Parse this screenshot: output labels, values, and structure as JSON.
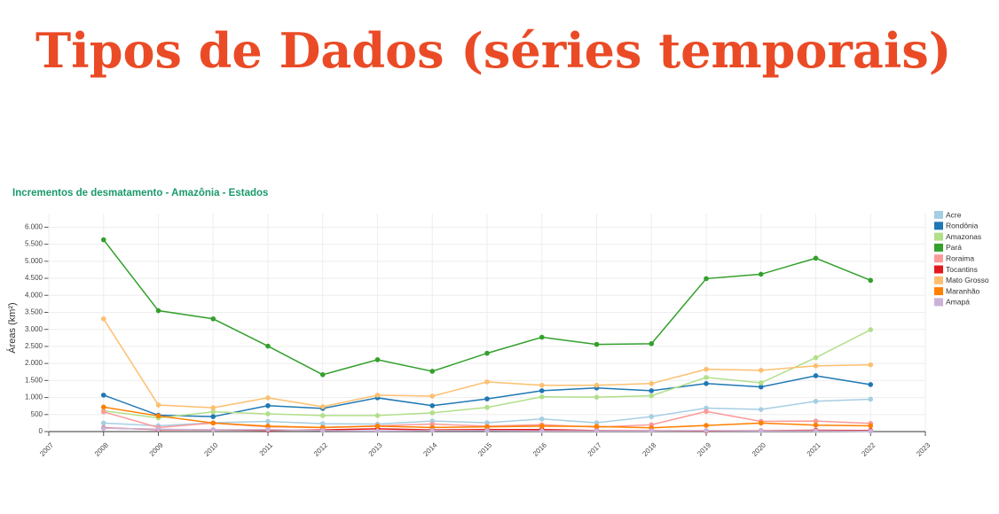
{
  "slide_title": "Tipos de Dados (séries temporais)",
  "chart_data": {
    "type": "line",
    "title": "Incrementos de desmatamento - Amazônia - Estados",
    "ylabel": "Áreas (km²)",
    "x": [
      2008,
      2009,
      2010,
      2011,
      2012,
      2013,
      2014,
      2015,
      2016,
      2017,
      2018,
      2019,
      2020,
      2021,
      2022
    ],
    "xlim": [
      2007,
      2023
    ],
    "xticks": [
      2007,
      2008,
      2009,
      2010,
      2011,
      2012,
      2013,
      2014,
      2015,
      2016,
      2017,
      2018,
      2019,
      2020,
      2021,
      2022,
      2023
    ],
    "ylim": [
      0,
      6400
    ],
    "yticks": [
      0,
      {
        "value": 500,
        "label": "500"
      },
      {
        "value": 1000,
        "label": "1.000"
      },
      {
        "value": 1500,
        "label": "1.500"
      },
      {
        "value": 2000,
        "label": "2.000"
      },
      {
        "value": 2500,
        "label": "2.500"
      },
      {
        "value": 3000,
        "label": "3.000"
      },
      {
        "value": 3500,
        "label": "3.500"
      },
      {
        "value": 4000,
        "label": "4.000"
      },
      {
        "value": 4500,
        "label": "4.500"
      },
      {
        "value": 5000,
        "label": "5.000"
      },
      {
        "value": 5500,
        "label": "5.500"
      },
      {
        "value": 6000,
        "label": "6.000"
      }
    ],
    "grid": true,
    "legend": "right",
    "series": [
      {
        "name": "Acre",
        "color": "#a6cee3",
        "values": [
          250,
          170,
          260,
          300,
          230,
          220,
          310,
          260,
          370,
          260,
          440,
          690,
          650,
          890,
          950
        ]
      },
      {
        "name": "Rondônia",
        "color": "#1f78b4",
        "values": [
          1070,
          480,
          440,
          760,
          680,
          990,
          760,
          960,
          1200,
          1280,
          1200,
          1410,
          1310,
          1640,
          1380
        ]
      },
      {
        "name": "Amazonas",
        "color": "#b2df8a",
        "values": [
          610,
          400,
          580,
          520,
          470,
          470,
          550,
          710,
          1020,
          1010,
          1050,
          1590,
          1430,
          2170,
          2990
        ]
      },
      {
        "name": "Pará",
        "color": "#33a02c",
        "values": [
          5630,
          3550,
          3310,
          2510,
          1670,
          2110,
          1770,
          2300,
          2770,
          2560,
          2580,
          4490,
          4620,
          5090,
          4440
        ]
      },
      {
        "name": "Roraima",
        "color": "#fb9a99",
        "values": [
          580,
          120,
          250,
          140,
          120,
          170,
          220,
          160,
          200,
          130,
          200,
          590,
          300,
          310,
          240
        ]
      },
      {
        "name": "Tocantins",
        "color": "#e31a1c",
        "values": [
          110,
          60,
          50,
          40,
          50,
          80,
          50,
          60,
          60,
          30,
          25,
          20,
          25,
          40,
          30
        ]
      },
      {
        "name": "Mato Grosso",
        "color": "#fdbf6f",
        "values": [
          3310,
          780,
          700,
          990,
          730,
          1070,
          1040,
          1460,
          1360,
          1360,
          1410,
          1830,
          1800,
          1930,
          1960
        ]
      },
      {
        "name": "Maranhão",
        "color": "#ff7f00",
        "values": [
          720,
          460,
          250,
          160,
          120,
          160,
          120,
          140,
          160,
          150,
          110,
          180,
          250,
          190,
          170
        ]
      },
      {
        "name": "Amapá",
        "color": "#cab2d6",
        "values": [
          100,
          70,
          50,
          60,
          30,
          20,
          30,
          30,
          20,
          20,
          20,
          30,
          20,
          20,
          10
        ]
      }
    ]
  }
}
